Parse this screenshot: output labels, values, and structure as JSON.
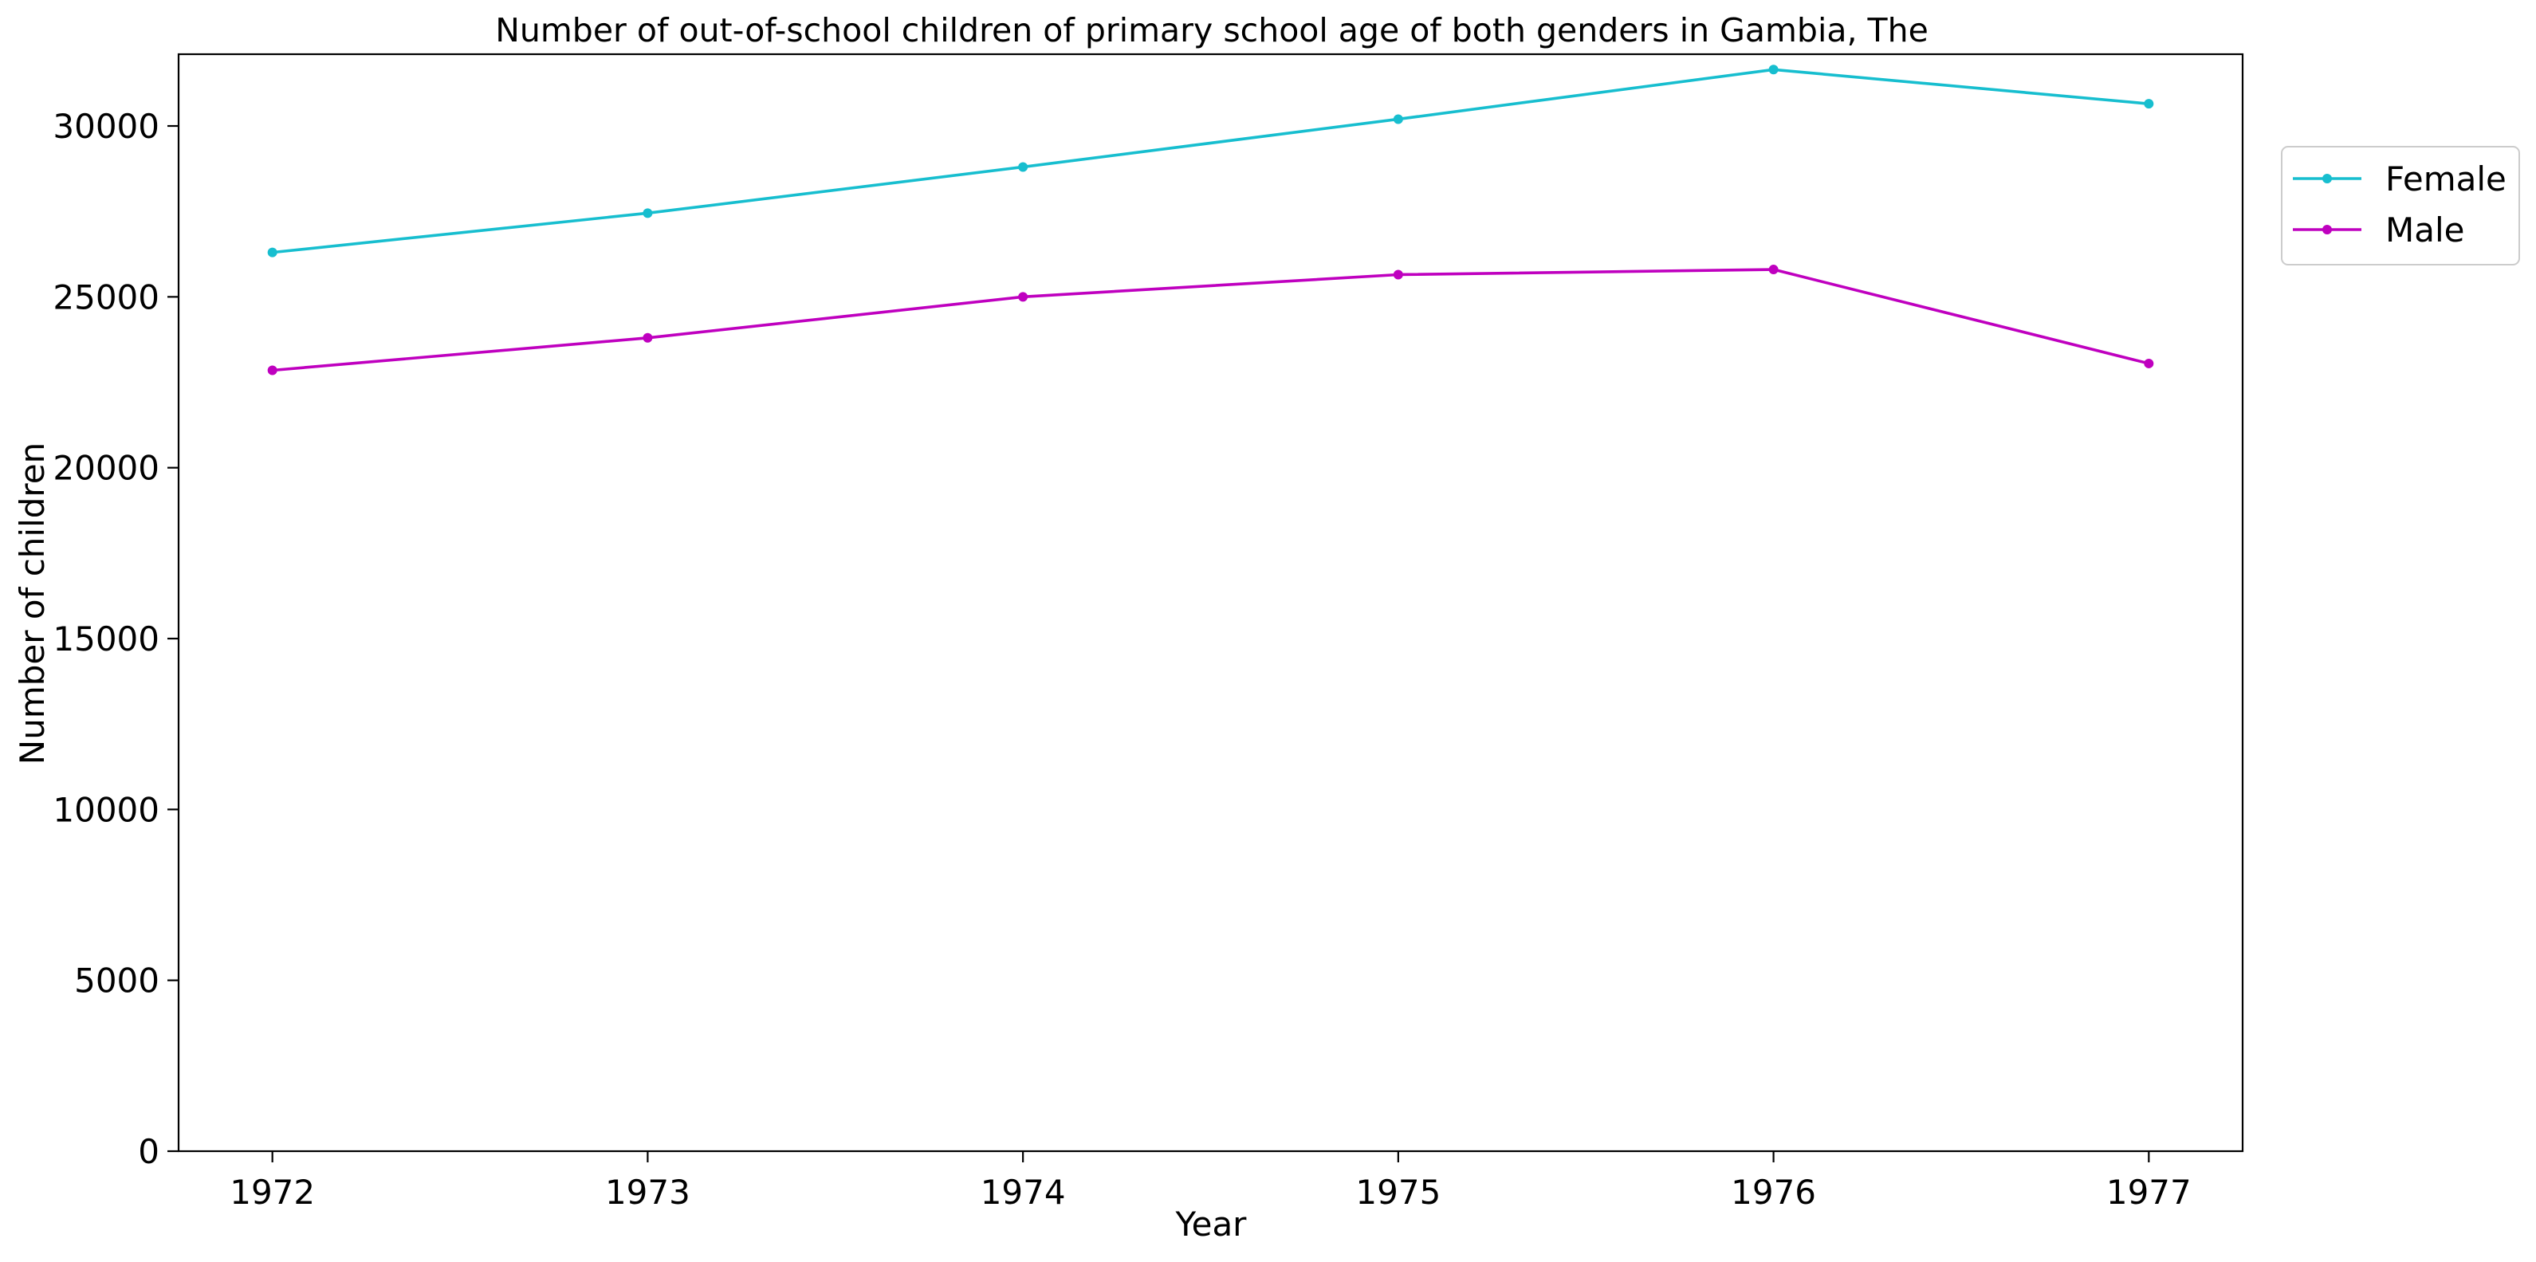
{
  "chart_data": {
    "type": "line",
    "title": "Number of out-of-school children of primary school age of both genders in Gambia, The",
    "xlabel": "Year",
    "ylabel": "Number of children",
    "x": [
      1972,
      1973,
      1974,
      1975,
      1976,
      1977
    ],
    "x_tick_labels": [
      "1972",
      "1973",
      "1974",
      "1975",
      "1976",
      "1977"
    ],
    "ylim": [
      0,
      32100
    ],
    "y_ticks": [
      0,
      5000,
      10000,
      15000,
      20000,
      25000,
      30000
    ],
    "y_tick_labels": [
      "0",
      "5000",
      "10000",
      "15000",
      "20000",
      "25000",
      "30000"
    ],
    "grid": false,
    "legend_position": "outside-top-right",
    "series": [
      {
        "name": "Female",
        "color": "#17becf",
        "values": [
          26300,
          27450,
          28800,
          30200,
          31650,
          30650
        ]
      },
      {
        "name": "Male",
        "color": "#bf00bf",
        "values": [
          22850,
          23800,
          25000,
          25650,
          25800,
          23050
        ]
      }
    ]
  }
}
